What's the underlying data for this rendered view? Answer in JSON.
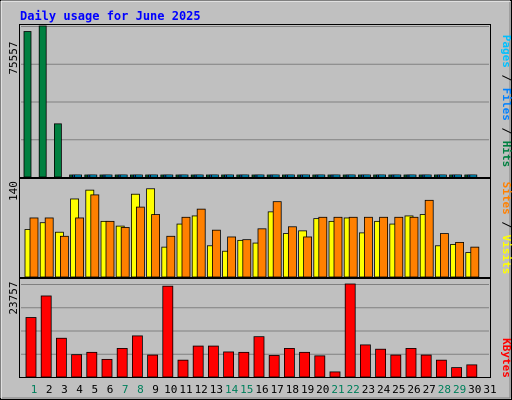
{
  "title": "Daily usage for June 2025",
  "chart_data": [
    {
      "type": "bar",
      "panel": "hits-files-pages",
      "categories": [
        "1",
        "2",
        "3",
        "4",
        "5",
        "6",
        "7",
        "8",
        "9",
        "10",
        "11",
        "12",
        "13",
        "14",
        "15",
        "16",
        "17",
        "18",
        "19",
        "20",
        "21",
        "22",
        "23",
        "24",
        "25",
        "26",
        "27",
        "28",
        "29",
        "30"
      ],
      "ymax_label": "75557",
      "ylim": [
        0,
        75557
      ],
      "right_label": [
        "Pages",
        "Files",
        "Hits"
      ],
      "series": [
        {
          "name": "Hits",
          "color": "#008040",
          "values": [
            72800,
            75557,
            26600,
            1000,
            900,
            600,
            600,
            600,
            700,
            600,
            600,
            700,
            600,
            600,
            600,
            700,
            600,
            600,
            600,
            600,
            600,
            700,
            600,
            600,
            600,
            700,
            700,
            600,
            600,
            700
          ]
        },
        {
          "name": "Files",
          "color": "#0080ff",
          "values": [
            0,
            0,
            0,
            1000,
            800,
            500,
            500,
            500,
            700,
            500,
            500,
            800,
            500,
            500,
            500,
            600,
            500,
            500,
            500,
            500,
            500,
            600,
            500,
            500,
            500,
            600,
            600,
            500,
            500,
            600
          ]
        },
        {
          "name": "Pages",
          "color": "#00c0ff",
          "values": [
            0,
            0,
            0,
            600,
            400,
            300,
            300,
            300,
            800,
            300,
            300,
            400,
            300,
            300,
            300,
            400,
            300,
            300,
            300,
            300,
            300,
            400,
            300,
            300,
            300,
            400,
            400,
            300,
            300,
            400
          ]
        }
      ]
    },
    {
      "type": "bar",
      "panel": "visits-sites",
      "categories": [
        "1",
        "2",
        "3",
        "4",
        "5",
        "6",
        "7",
        "8",
        "9",
        "10",
        "11",
        "12",
        "13",
        "14",
        "15",
        "16",
        "17",
        "18",
        "19",
        "20",
        "21",
        "22",
        "23",
        "24",
        "25",
        "26",
        "27",
        "28",
        "29",
        "30"
      ],
      "ymax_label": "140",
      "ylim": [
        0,
        140
      ],
      "right_label": [
        "Sites",
        "Visits"
      ],
      "series": [
        {
          "name": "Visits",
          "color": "#ffff00",
          "values": [
            70,
            80,
            66,
            115,
            128,
            82,
            75,
            122,
            130,
            44,
            78,
            90,
            46,
            38,
            54,
            50,
            96,
            64,
            68,
            86,
            82,
            87,
            65,
            82,
            78,
            90,
            92,
            46,
            48,
            36
          ]
        },
        {
          "name": "Sites",
          "color": "#ff8000",
          "values": [
            87,
            87,
            60,
            87,
            121,
            82,
            73,
            103,
            92,
            60,
            88,
            100,
            69,
            59,
            55,
            71,
            111,
            74,
            59,
            88,
            88,
            88,
            88,
            88,
            88,
            88,
            113,
            64,
            51,
            44
          ]
        }
      ]
    },
    {
      "type": "bar",
      "panel": "kbytes",
      "categories": [
        "1",
        "2",
        "3",
        "4",
        "5",
        "6",
        "7",
        "8",
        "9",
        "10",
        "11",
        "12",
        "13",
        "14",
        "15",
        "16",
        "17",
        "18",
        "19",
        "20",
        "21",
        "22",
        "23",
        "24",
        "25",
        "26",
        "27",
        "28",
        "29",
        "30"
      ],
      "ymax_label": "23757",
      "ylim": [
        0,
        23757
      ],
      "right_label": [
        "KBytes"
      ],
      "series": [
        {
          "name": "KBytes",
          "color": "#ff0000",
          "values": [
            15200,
            20700,
            9900,
            5700,
            6300,
            4500,
            7300,
            10500,
            5600,
            23200,
            4300,
            7900,
            7900,
            6400,
            6300,
            10300,
            5500,
            7300,
            6300,
            5400,
            1300,
            23757,
            8200,
            7100,
            5600,
            7300,
            5600,
            4300,
            2400,
            3100
          ]
        }
      ]
    }
  ],
  "x_axis": {
    "labels": [
      "1",
      "2",
      "3",
      "4",
      "5",
      "6",
      "7",
      "8",
      "9",
      "10",
      "11",
      "12",
      "13",
      "14",
      "15",
      "16",
      "17",
      "18",
      "19",
      "20",
      "21",
      "22",
      "23",
      "24",
      "25",
      "26",
      "27",
      "28",
      "29",
      "30",
      "31"
    ],
    "weekend_days": [
      1,
      7,
      8,
      14,
      15,
      21,
      22,
      28,
      29
    ],
    "weekday_color": "#000000",
    "weekend_color": "#00805c"
  },
  "colors": {
    "title": "#0000ff",
    "panel_bg": "#c0c0c0",
    "gridline": "#808080",
    "hits": "#008040",
    "files": "#0080ff",
    "pages": "#00c0ff",
    "visits": "#ffff00",
    "sites": "#ff8000",
    "kbytes": "#ff0000"
  }
}
